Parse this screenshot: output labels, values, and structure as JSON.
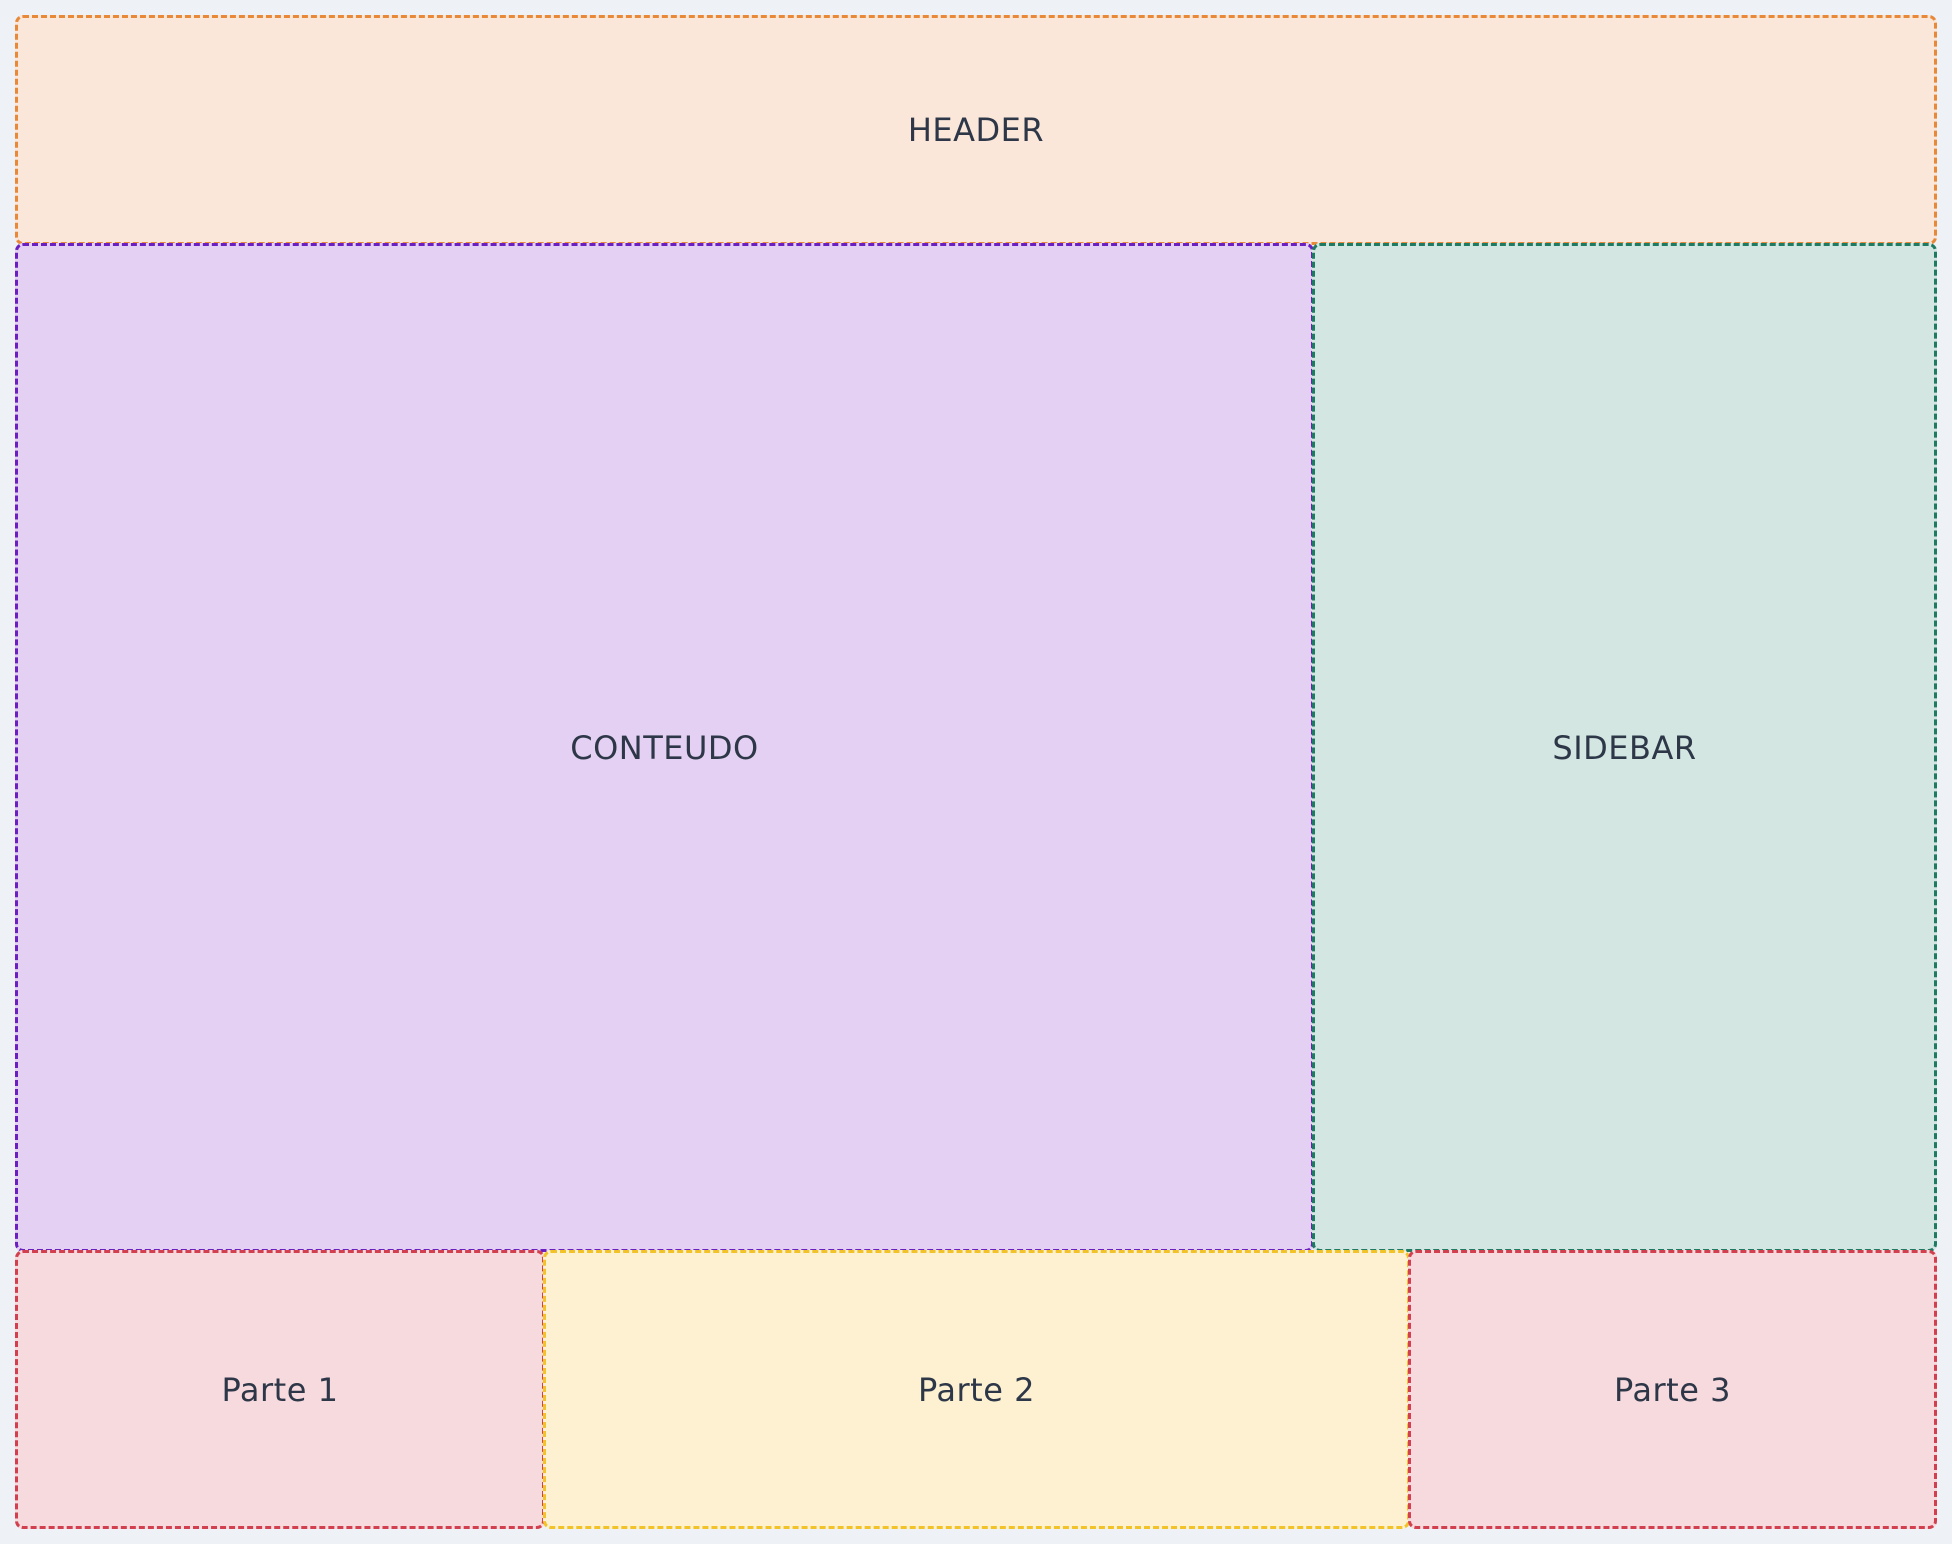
{
  "regions": {
    "header": {
      "label": "HEADER",
      "background": "#fae7da",
      "border": "#e8893a"
    },
    "content": {
      "label": "CONTEUDO",
      "background": "#e4d0f3",
      "border": "#6b1fc0"
    },
    "sidebar": {
      "label": "SIDEBAR",
      "background": "#d3e6e2",
      "border": "#1f7a62"
    },
    "footer": [
      {
        "label": "Parte 1",
        "background": "#f7dade",
        "border": "#d2404f"
      },
      {
        "label": "Parte 2",
        "background": "#fdf1d2",
        "border": "#f2c229"
      },
      {
        "label": "Parte 3",
        "background": "#f7dade",
        "border": "#d2404f"
      }
    ]
  }
}
